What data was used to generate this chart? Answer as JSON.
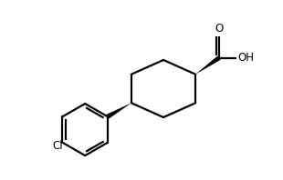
{
  "bg_color": "#ffffff",
  "line_color": "#000000",
  "line_width": 1.6,
  "fig_width": 3.1,
  "fig_height": 1.98,
  "dpi": 100,
  "xlim": [
    0,
    10
  ],
  "ylim": [
    0,
    6.5
  ],
  "cooh_label_fontsize": 8.5,
  "cl_label_fontsize": 8.5
}
